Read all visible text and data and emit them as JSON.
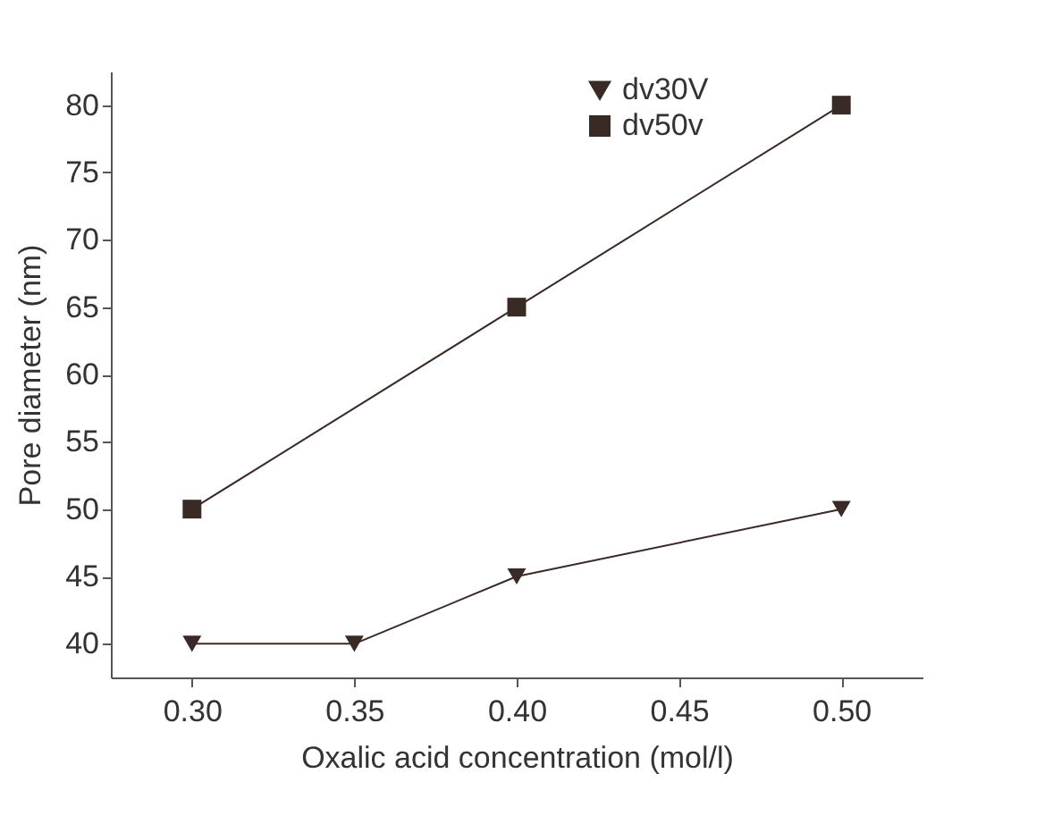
{
  "chart_data": {
    "type": "line",
    "xlabel": "Oxalic acid concentration (mol/l)",
    "ylabel": "Pore diameter (nm)",
    "x": [
      0.3,
      0.35,
      0.4,
      0.5
    ],
    "series": [
      {
        "name": "dv30V",
        "color": "#3a2a26",
        "marker": "triangle-down",
        "values": [
          40,
          40,
          45,
          50
        ]
      },
      {
        "name": "dv50v",
        "color": "#3a2a26",
        "marker": "square",
        "x": [
          0.3,
          0.4,
          0.5
        ],
        "values": [
          50,
          65,
          80
        ]
      }
    ],
    "xlim": [
      0.275,
      0.525
    ],
    "ylim": [
      37.5,
      82.5
    ],
    "xticks": [
      {
        "value": 0.3,
        "label": "0.30"
      },
      {
        "value": 0.35,
        "label": "0.35"
      },
      {
        "value": 0.4,
        "label": "0.40"
      },
      {
        "value": 0.45,
        "label": "0.45"
      },
      {
        "value": 0.5,
        "label": "0.50"
      }
    ],
    "yticks": [
      40,
      45,
      50,
      55,
      60,
      65,
      70,
      75,
      80
    ],
    "grid": false,
    "legend": "top right",
    "line_style": "solid"
  }
}
